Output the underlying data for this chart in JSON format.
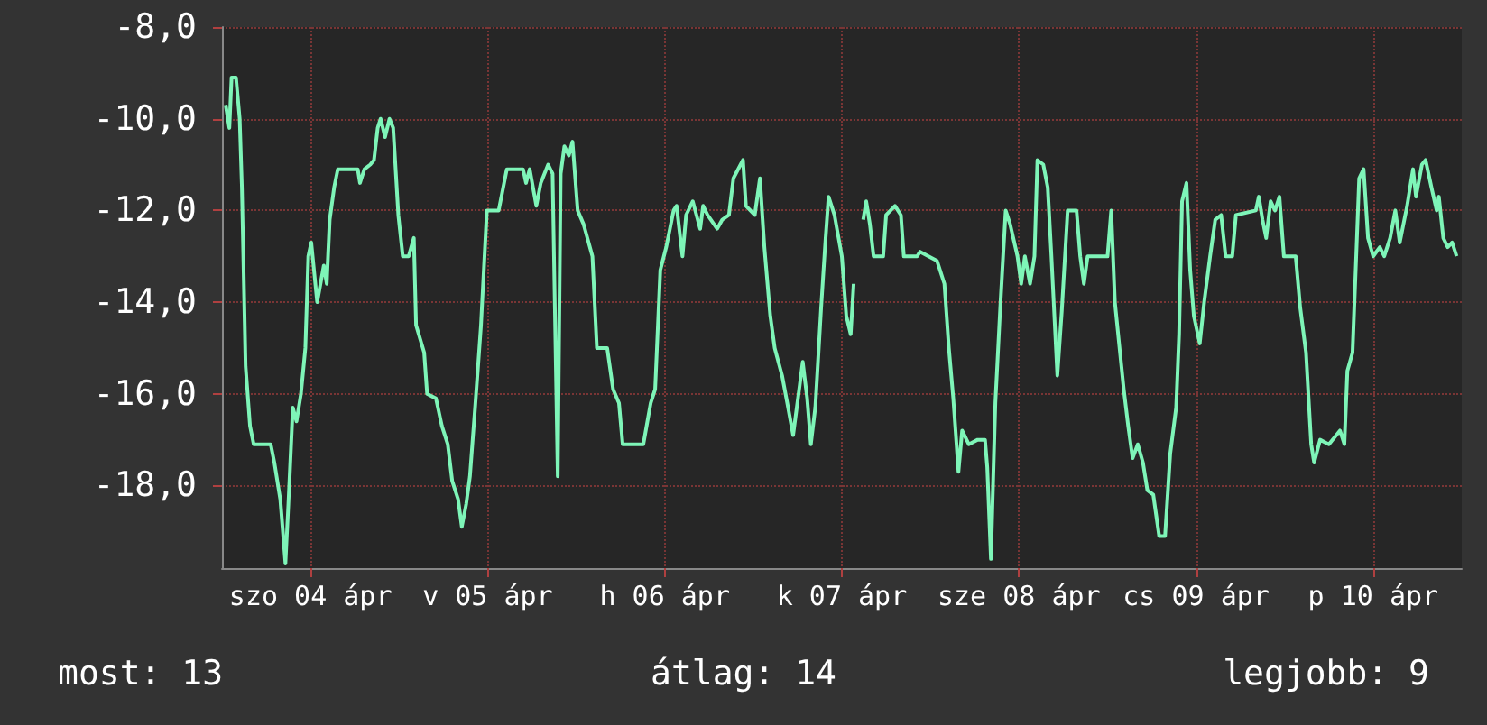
{
  "chart_data": {
    "type": "line",
    "x": [
      "--04-04T00:30",
      "--04-04T01:00",
      "--04-04T01:18",
      "--04-04T01:54",
      "--04-04T02:24",
      "--04-04T02:42",
      "--04-04T03:12",
      "--04-04T03:48",
      "--04-04T04:18",
      "--04-04T06:36",
      "--04-04T07:06",
      "--04-04T07:54",
      "--04-04T08:36",
      "--04-04T09:00",
      "--04-04T09:36",
      "--04-04T10:06",
      "--04-04T10:42",
      "--04-04T11:18",
      "--04-04T11:42",
      "--04-04T12:06",
      "--04-04T12:54",
      "--04-04T13:48",
      "--04-04T14:12",
      "--04-04T14:36",
      "--04-04T15:12",
      "--04-04T15:42",
      "--04-04T18:24",
      "--04-04T18:42",
      "--04-04T19:18",
      "--04-04T20:06",
      "--04-04T20:36",
      "--04-04T21:06",
      "--04-04T21:30",
      "--04-04T22:06",
      "--04-04T22:42",
      "--04-04T23:12",
      "--04-04T23:54",
      "--04-05T00:30",
      "--04-05T01:18",
      "--04-05T02:00",
      "--04-05T02:18",
      "--04-05T03:24",
      "--04-05T03:48",
      "--04-05T05:00",
      "--04-05T05:48",
      "--04-05T06:36",
      "--04-05T07:12",
      "--04-05T08:00",
      "--04-05T08:30",
      "--04-05T09:06",
      "--04-05T09:36",
      "--04-05T10:18",
      "--04-05T11:06",
      "--04-05T11:54",
      "--04-05T13:30",
      "--04-05T14:36",
      "--04-05T16:48",
      "--04-05T17:12",
      "--04-05T17:42",
      "--04-05T18:36",
      "--04-05T19:12",
      "--04-05T20:12",
      "--04-05T20:48",
      "--04-05T21:30",
      "--04-05T21:54",
      "--04-05T22:24",
      "--04-05T23:00",
      "--04-05T23:30",
      "--04-06T00:12",
      "--04-06T01:00",
      "--04-06T02:12",
      "--04-06T02:48",
      "--04-06T04:12",
      "--04-06T05:00",
      "--04-06T05:48",
      "--04-06T06:18",
      "--04-06T07:30",
      "--04-06T09:06",
      "--04-06T10:06",
      "--04-06T10:42",
      "--04-06T11:24",
      "--04-06T12:12",
      "--04-06T13:12",
      "--04-06T13:36",
      "--04-06T14:24",
      "--04-06T14:54",
      "--04-06T15:48",
      "--04-06T16:18",
      "--04-06T16:48",
      "--04-06T17:12",
      "--04-06T17:48",
      "--04-06T19:06",
      "--04-06T19:48",
      "--04-06T20:42",
      "--04-06T21:18",
      "--04-06T22:36",
      "--04-06T23:00",
      "--04-07T00:12",
      "--04-07T00:54",
      "--04-07T01:30",
      "--04-07T02:18",
      "--04-07T02:54",
      "--04-07T03:54",
      "--04-07T04:36",
      "--04-07T05:24",
      "--04-07T06:18",
      "--04-07T06:42",
      "--04-07T07:18",
      "--04-07T07:48",
      "--04-07T08:24",
      "--04-07T09:12",
      "--04-07T09:48",
      "--04-07T10:12",
      "--04-07T11:00",
      "--04-07T12:00",
      "--04-07T12:36",
      "--04-07T13:12",
      "--04-07T13:36",
      "--04-07T14:12",
      "--04-07T14:54",
      "--04-07T15:18",
      "--04-07T15:48",
      "--04-07T16:18",
      "--04-07T17:36",
      "--04-07T18:00",
      "--04-07T19:12",
      "--04-07T20:00",
      "--04-07T20:24",
      "--04-07T22:12",
      "--04-07T22:36",
      "--04-08T00:54",
      "--04-08T01:54",
      "--04-08T02:30",
      "--04-08T03:06",
      "--04-08T03:48",
      "--04-08T04:18",
      "--04-08T05:12",
      "--04-08T06:24",
      "--04-08T07:24",
      "--04-08T07:42",
      "--04-08T08:12",
      "--04-08T08:48",
      "--04-08T09:30",
      "--04-08T10:12",
      "--04-08T10:48",
      "--04-08T11:48",
      "--04-08T12:18",
      "--04-08T12:48",
      "--04-08T13:30",
      "--04-08T14:06",
      "--04-08T14:30",
      "--04-08T15:18",
      "--04-08T15:54",
      "--04-08T16:24",
      "--04-08T17:12",
      "--04-08T17:48",
      "--04-08T18:36",
      "--04-08T19:48",
      "--04-08T20:18",
      "--04-08T20:48",
      "--04-08T21:18",
      "--04-09T00:00",
      "--04-09T00:30",
      "--04-09T01:00",
      "--04-09T02:12",
      "--04-09T02:48",
      "--04-09T03:24",
      "--04-09T04:06",
      "--04-09T04:48",
      "--04-09T05:24",
      "--04-09T06:12",
      "--04-09T07:00",
      "--04-09T07:48",
      "--04-09T08:30",
      "--04-09T09:18",
      "--04-09T09:42",
      "--04-09T10:06",
      "--04-09T10:42",
      "--04-09T11:12",
      "--04-09T11:42",
      "--04-09T12:30",
      "--04-09T13:06",
      "--04-09T13:54",
      "--04-09T14:36",
      "--04-09T15:24",
      "--04-09T16:00",
      "--04-09T16:54",
      "--04-09T17:24",
      "--04-09T20:06",
      "--04-09T20:30",
      "--04-09T21:00",
      "--04-09T21:30",
      "--04-09T22:06",
      "--04-09T22:42",
      "--04-09T23:18",
      "--04-09T23:54",
      "--04-10T01:30",
      "--04-10T02:06",
      "--04-10T02:54",
      "--04-10T03:36",
      "--04-10T04:00",
      "--04-10T04:48",
      "--04-10T06:00",
      "--04-10T07:30",
      "--04-10T08:06",
      "--04-10T08:30",
      "--04-10T09:12",
      "--04-10T09:42",
      "--04-10T10:06",
      "--04-10T10:42",
      "--04-10T11:18",
      "--04-10T12:00",
      "--04-10T12:54",
      "--04-10T13:30",
      "--04-10T14:18",
      "--04-10T15:00",
      "--04-10T15:36",
      "--04-10T16:36",
      "--04-10T17:24",
      "--04-10T17:48",
      "--04-10T18:36",
      "--04-10T19:06",
      "--04-10T19:54",
      "--04-10T20:36",
      "--04-10T20:54",
      "--04-10T21:30",
      "--04-10T22:06",
      "--04-10T22:42",
      "--04-10T23:18"
    ],
    "series": [
      {
        "color": "#7ef5b8",
        "values": [
          -9.7,
          -10.2,
          -9.1,
          -9.1,
          -10.0,
          -11.5,
          -15.4,
          -16.7,
          -17.1,
          -17.1,
          -17.5,
          -18.3,
          -19.7,
          -18.4,
          -16.3,
          -16.6,
          -16.0,
          -15.0,
          -13.0,
          -12.7,
          -14.0,
          -13.2,
          -13.6,
          -12.2,
          -11.5,
          -11.1,
          -11.1,
          -11.4,
          -11.1,
          -11.0,
          -10.9,
          -10.2,
          -10.0,
          -10.4,
          -10.0,
          -10.2,
          -12.1,
          -13.0,
          -13.0,
          -12.6,
          -14.5,
          -15.1,
          -16.0,
          -16.1,
          -16.7,
          -17.1,
          -17.9,
          -18.3,
          -18.9,
          -18.4,
          -17.8,
          -16.3,
          -14.5,
          -12.0,
          -12.0,
          -11.1,
          -11.1,
          -11.4,
          -11.1,
          -11.9,
          -11.4,
          -11.0,
          -11.2,
          -17.8,
          -11.2,
          -10.6,
          -10.8,
          -10.5,
          -12.0,
          -12.3,
          -13.0,
          -15.0,
          -15.0,
          -15.9,
          -16.2,
          -17.1,
          -17.1,
          -17.1,
          -16.2,
          -15.9,
          -13.3,
          -12.8,
          -12.0,
          -11.9,
          -13.0,
          -12.1,
          -11.8,
          -12.1,
          -12.4,
          -11.9,
          -12.1,
          -12.4,
          -12.2,
          -12.1,
          -11.3,
          -10.9,
          -11.9,
          -12.1,
          -11.3,
          -12.8,
          -14.3,
          -15.0,
          -15.6,
          -16.2,
          -16.9,
          -15.8,
          -15.3,
          -16.1,
          -17.1,
          -16.3,
          -14.1,
          -12.6,
          -11.7,
          -12.1,
          -13.0,
          -14.3,
          -14.7,
          -13.6,
          null,
          -12.2,
          -11.8,
          -12.3,
          -13.0,
          -13.0,
          -12.1,
          -11.9,
          -12.1,
          -13.0,
          -13.0,
          -12.9,
          -13.1,
          -13.6,
          -15.0,
          -16.1,
          -17.7,
          -16.8,
          -17.1,
          -17.0,
          -17.0,
          -17.6,
          -19.6,
          -16.2,
          -14.0,
          -12.0,
          -12.3,
          -13.0,
          -13.6,
          -13.0,
          -13.6,
          -13.0,
          -10.9,
          -11.0,
          -11.5,
          -13.0,
          -15.6,
          -14.2,
          -12.0,
          -12.0,
          -13.0,
          -13.6,
          -13.0,
          -13.0,
          -12.0,
          -14.0,
          -15.9,
          -16.7,
          -17.4,
          -17.1,
          -17.5,
          -18.1,
          -18.2,
          -19.1,
          -19.1,
          -17.3,
          -16.3,
          -14.7,
          -11.8,
          -11.4,
          -13.3,
          -14.3,
          -14.9,
          -14.0,
          -13.0,
          -12.2,
          -12.1,
          -13.0,
          -13.0,
          -12.1,
          -12.0,
          -11.7,
          -12.2,
          -12.6,
          -11.8,
          -12.0,
          -11.7,
          -13.0,
          -13.0,
          -14.1,
          -15.1,
          -17.1,
          -17.5,
          -17.0,
          -17.1,
          -16.8,
          -17.1,
          -15.5,
          -15.1,
          -13.0,
          -11.3,
          -11.1,
          -12.6,
          -13.0,
          -12.8,
          -13.0,
          -12.6,
          -12.0,
          -12.7,
          -11.9,
          -11.1,
          -11.7,
          -11.0,
          -10.9,
          -11.5,
          -12.0,
          -11.7,
          -12.6,
          -12.8,
          -12.7,
          -13.0
        ]
      }
    ],
    "xlim": [
      "--04-04",
      "--04-11"
    ],
    "xticks": [
      {
        "value": "--04-04T12:00",
        "label": "szo 04 ápr"
      },
      {
        "value": "--04-05T12:00",
        "label": "v 05 ápr"
      },
      {
        "value": "--04-06T12:00",
        "label": "h 06 ápr"
      },
      {
        "value": "--04-07T12:00",
        "label": "k 07 ápr"
      },
      {
        "value": "--04-08T12:00",
        "label": "sze 08 ápr"
      },
      {
        "value": "--04-09T12:00",
        "label": "cs 09 ápr"
      },
      {
        "value": "--04-10T12:00",
        "label": "p 10 ápr"
      }
    ],
    "ylim": [
      -19.8,
      -8
    ],
    "yticks": [
      {
        "value": -8,
        "label": "-8,0"
      },
      {
        "value": -10,
        "label": "-10,0"
      },
      {
        "value": -12,
        "label": "-12,0"
      },
      {
        "value": -14,
        "label": "-14,0"
      },
      {
        "value": -16,
        "label": "-16,0"
      },
      {
        "value": -18,
        "label": "-18,0"
      }
    ],
    "grid": true,
    "marker": "none",
    "line_style": "solid",
    "annotations": [
      "most: 13",
      "átlag: 14",
      "legjobb: 9"
    ]
  }
}
